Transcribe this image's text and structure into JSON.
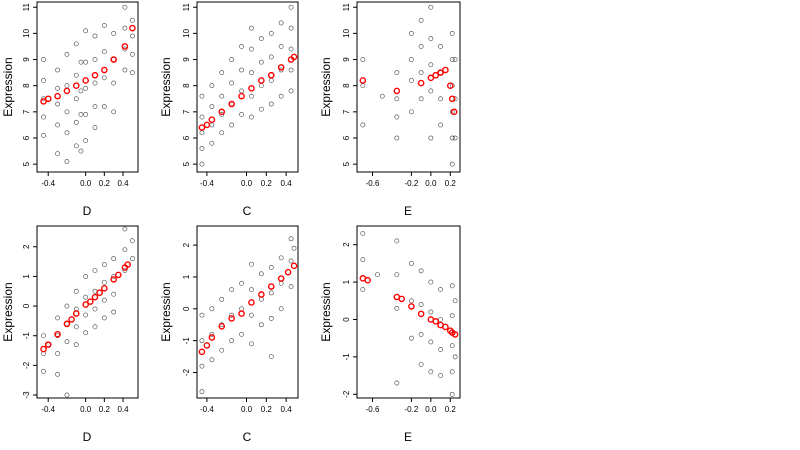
{
  "figure": {
    "background": "#ffffff"
  },
  "colors": {
    "observed": "#000000",
    "fitted": "#ff0000"
  },
  "chart_data": [
    {
      "type": "scatter",
      "panel": "top-left",
      "xlabel": "D",
      "ylabel": "Expression",
      "xlim": [
        -0.52,
        0.56
      ],
      "ylim": [
        4.7,
        11.2
      ],
      "xticks": [
        {
          "v": -0.4,
          "label": "-0.4"
        },
        {
          "v": 0.0,
          "label": "0.0"
        },
        {
          "v": 0.2,
          "label": "0.2"
        },
        {
          "v": 0.4,
          "label": "0.4"
        }
      ],
      "yticks": [
        {
          "v": 5,
          "label": "5"
        },
        {
          "v": 6,
          "label": "6"
        },
        {
          "v": 7,
          "label": "7"
        },
        {
          "v": 8,
          "label": "8"
        },
        {
          "v": 9,
          "label": "9"
        },
        {
          "v": 10,
          "label": "10"
        },
        {
          "v": 11,
          "label": "11"
        }
      ],
      "series": [
        {
          "x": [
            -0.45,
            -0.45,
            -0.45,
            -0.45,
            -0.45,
            -0.3,
            -0.3,
            -0.3,
            -0.3,
            -0.3,
            -0.2,
            -0.2,
            -0.2,
            -0.2,
            -0.2,
            -0.1,
            -0.1,
            -0.1,
            -0.1,
            -0.1,
            -0.05,
            -0.05,
            -0.05,
            -0.05,
            0.0,
            0.0,
            0.0,
            0.0,
            0.0,
            0.1,
            0.1,
            0.1,
            0.1,
            0.1,
            0.2,
            0.2,
            0.2,
            0.2,
            0.3,
            0.3,
            0.3,
            0.3,
            0.42,
            0.42,
            0.42,
            0.42,
            0.5,
            0.5,
            0.5,
            0.5
          ],
          "y": [
            9.0,
            8.2,
            7.5,
            6.8,
            6.1,
            8.6,
            7.9,
            7.3,
            6.5,
            5.4,
            9.2,
            8.0,
            7.0,
            6.2,
            5.1,
            9.6,
            8.4,
            7.5,
            6.6,
            5.7,
            8.9,
            7.8,
            6.9,
            5.5,
            10.1,
            8.9,
            7.9,
            6.9,
            5.9,
            9.9,
            9.0,
            8.1,
            7.2,
            6.4,
            10.3,
            9.3,
            8.3,
            7.2,
            10.0,
            9.0,
            8.1,
            7.0,
            11.0,
            10.2,
            9.4,
            8.6,
            10.5,
            9.9,
            9.2,
            8.5
          ]
        },
        {
          "x": [
            -0.45,
            -0.4,
            -0.3,
            -0.2,
            -0.1,
            0.0,
            0.1,
            0.2,
            0.3,
            0.42,
            0.5
          ],
          "y": [
            7.4,
            7.5,
            7.6,
            7.8,
            8.0,
            8.2,
            8.4,
            8.6,
            9.0,
            9.5,
            10.2
          ]
        }
      ]
    },
    {
      "type": "scatter",
      "panel": "top-middle",
      "xlabel": "C",
      "ylabel": "Expression",
      "xlim": [
        -0.5,
        0.52
      ],
      "ylim": [
        4.7,
        11.2
      ],
      "xticks": [
        {
          "v": -0.4,
          "label": "-0.4"
        },
        {
          "v": 0.0,
          "label": "0.0"
        },
        {
          "v": 0.2,
          "label": "0.2"
        },
        {
          "v": 0.4,
          "label": "0.4"
        }
      ],
      "yticks": [
        {
          "v": 5,
          "label": "5"
        },
        {
          "v": 6,
          "label": "6"
        },
        {
          "v": 7,
          "label": "7"
        },
        {
          "v": 8,
          "label": "8"
        },
        {
          "v": 9,
          "label": "9"
        },
        {
          "v": 10,
          "label": "10"
        },
        {
          "v": 11,
          "label": "11"
        }
      ],
      "series": [
        {
          "x": [
            -0.45,
            -0.45,
            -0.45,
            -0.45,
            -0.45,
            -0.35,
            -0.35,
            -0.35,
            -0.35,
            -0.25,
            -0.25,
            -0.25,
            -0.25,
            -0.15,
            -0.15,
            -0.15,
            -0.15,
            -0.05,
            -0.05,
            -0.05,
            -0.05,
            0.05,
            0.05,
            0.05,
            0.05,
            0.05,
            0.15,
            0.15,
            0.15,
            0.15,
            0.25,
            0.25,
            0.25,
            0.25,
            0.35,
            0.35,
            0.35,
            0.35,
            0.45,
            0.45,
            0.45,
            0.45,
            0.45
          ],
          "y": [
            7.6,
            6.8,
            6.2,
            5.6,
            5.0,
            8.0,
            7.2,
            6.5,
            5.8,
            8.5,
            7.6,
            6.9,
            6.2,
            9.0,
            8.1,
            7.3,
            6.5,
            9.5,
            8.6,
            7.8,
            6.9,
            10.2,
            9.4,
            8.5,
            7.6,
            6.8,
            9.8,
            8.9,
            8.0,
            7.1,
            10.0,
            9.1,
            8.2,
            7.3,
            10.4,
            9.5,
            8.6,
            7.6,
            11.0,
            10.2,
            9.4,
            8.6,
            7.8
          ]
        },
        {
          "x": [
            -0.45,
            -0.4,
            -0.35,
            -0.25,
            -0.15,
            -0.05,
            0.05,
            0.15,
            0.25,
            0.35,
            0.45,
            0.48
          ],
          "y": [
            6.4,
            6.5,
            6.7,
            7.0,
            7.3,
            7.6,
            7.9,
            8.2,
            8.4,
            8.7,
            9.0,
            9.1
          ]
        }
      ]
    },
    {
      "type": "scatter",
      "panel": "top-right",
      "xlabel": "E",
      "ylabel": "Expression",
      "xlim": [
        -0.76,
        0.3
      ],
      "ylim": [
        4.7,
        11.2
      ],
      "xticks": [
        {
          "v": -0.6,
          "label": "-0.6"
        },
        {
          "v": -0.2,
          "label": "-0.2"
        },
        {
          "v": 0.0,
          "label": "0.0"
        },
        {
          "v": 0.2,
          "label": "0.2"
        }
      ],
      "yticks": [
        {
          "v": 5,
          "label": "5"
        },
        {
          "v": 6,
          "label": "6"
        },
        {
          "v": 7,
          "label": "7"
        },
        {
          "v": 8,
          "label": "8"
        },
        {
          "v": 9,
          "label": "9"
        },
        {
          "v": 10,
          "label": "10"
        },
        {
          "v": 11,
          "label": "11"
        }
      ],
      "series": [
        {
          "x": [
            -0.7,
            -0.7,
            -0.7,
            -0.5,
            -0.35,
            -0.35,
            -0.35,
            -0.35,
            -0.2,
            -0.2,
            -0.2,
            -0.2,
            -0.1,
            -0.1,
            -0.1,
            -0.1,
            0.0,
            0.0,
            0.0,
            0.0,
            0.0,
            0.1,
            0.1,
            0.1,
            0.1,
            0.22,
            0.22,
            0.22,
            0.22,
            0.22,
            0.22,
            0.25,
            0.25,
            0.25
          ],
          "y": [
            9.0,
            8.0,
            6.5,
            7.6,
            8.5,
            7.5,
            6.8,
            6.0,
            10.0,
            9.0,
            8.2,
            7.0,
            10.5,
            9.5,
            8.5,
            7.5,
            11.0,
            9.8,
            8.8,
            7.8,
            6.0,
            9.5,
            8.5,
            7.5,
            6.5,
            10.0,
            9.0,
            8.0,
            7.0,
            6.0,
            5.0,
            9.0,
            7.5,
            6.0
          ]
        },
        {
          "x": [
            -0.7,
            -0.35,
            -0.1,
            0.0,
            0.05,
            0.1,
            0.15,
            0.2,
            0.22,
            0.24
          ],
          "y": [
            8.2,
            7.8,
            8.1,
            8.3,
            8.4,
            8.5,
            8.6,
            8.0,
            7.5,
            7.0
          ]
        }
      ]
    },
    {
      "type": "scatter",
      "panel": "bottom-left",
      "xlabel": "D",
      "ylabel": "Expression",
      "xlim": [
        -0.52,
        0.56
      ],
      "ylim": [
        -3.1,
        2.7
      ],
      "xticks": [
        {
          "v": -0.4,
          "label": "-0.4"
        },
        {
          "v": 0.0,
          "label": "0.0"
        },
        {
          "v": 0.2,
          "label": "0.2"
        },
        {
          "v": 0.4,
          "label": "0.4"
        }
      ],
      "yticks": [
        {
          "v": -3,
          "label": "-3"
        },
        {
          "v": -2,
          "label": "-2"
        },
        {
          "v": -1,
          "label": "-1"
        },
        {
          "v": 0,
          "label": "0"
        },
        {
          "v": 1,
          "label": "1"
        },
        {
          "v": 2,
          "label": "2"
        }
      ],
      "series": [
        {
          "x": [
            -0.45,
            -0.45,
            -0.45,
            -0.4,
            -0.3,
            -0.3,
            -0.3,
            -0.3,
            -0.2,
            -0.2,
            -0.2,
            -0.2,
            -0.1,
            -0.1,
            -0.1,
            -0.1,
            0.0,
            0.0,
            0.0,
            0.0,
            0.1,
            0.1,
            0.1,
            0.1,
            0.2,
            0.2,
            0.2,
            0.2,
            0.3,
            0.3,
            0.3,
            0.3,
            0.42,
            0.42,
            0.42,
            0.5,
            0.5
          ],
          "y": [
            -1.0,
            -1.6,
            -2.2,
            -1.3,
            -0.4,
            -1.0,
            -1.6,
            -2.3,
            0.0,
            -0.6,
            -1.2,
            -3.0,
            0.5,
            -0.1,
            -0.7,
            -1.3,
            1.0,
            0.3,
            -0.3,
            -0.9,
            1.2,
            0.5,
            -0.1,
            -0.7,
            1.4,
            0.8,
            0.2,
            -0.4,
            1.6,
            1.0,
            0.4,
            -0.2,
            2.6,
            1.9,
            1.2,
            2.2,
            1.6
          ]
        },
        {
          "x": [
            -0.45,
            -0.4,
            -0.3,
            -0.2,
            -0.15,
            -0.1,
            0.0,
            0.05,
            0.1,
            0.15,
            0.2,
            0.3,
            0.35,
            0.42,
            0.45
          ],
          "y": [
            -1.45,
            -1.3,
            -0.95,
            -0.6,
            -0.45,
            -0.25,
            0.05,
            0.15,
            0.3,
            0.45,
            0.6,
            0.9,
            1.05,
            1.3,
            1.4
          ]
        }
      ]
    },
    {
      "type": "scatter",
      "panel": "bottom-middle",
      "xlabel": "C",
      "ylabel": "Expression",
      "xlim": [
        -0.5,
        0.52
      ],
      "ylim": [
        -2.8,
        2.6
      ],
      "xticks": [
        {
          "v": -0.4,
          "label": "-0.4"
        },
        {
          "v": 0.0,
          "label": "0.0"
        },
        {
          "v": 0.2,
          "label": "0.2"
        },
        {
          "v": 0.4,
          "label": "0.4"
        }
      ],
      "yticks": [
        {
          "v": -2,
          "label": "-2"
        },
        {
          "v": -1,
          "label": "-1"
        },
        {
          "v": 0,
          "label": "0"
        },
        {
          "v": 1,
          "label": "1"
        },
        {
          "v": 2,
          "label": "2"
        }
      ],
      "series": [
        {
          "x": [
            -0.45,
            -0.45,
            -0.45,
            -0.45,
            -0.35,
            -0.35,
            -0.35,
            -0.25,
            -0.25,
            -0.25,
            -0.15,
            -0.15,
            -0.15,
            -0.05,
            -0.05,
            -0.05,
            0.05,
            0.05,
            0.05,
            0.05,
            0.15,
            0.15,
            0.15,
            0.25,
            0.25,
            0.25,
            0.25,
            0.35,
            0.35,
            0.35,
            0.45,
            0.45,
            0.45,
            0.48
          ],
          "y": [
            -0.2,
            -1.0,
            -1.8,
            -2.6,
            0.0,
            -0.8,
            -1.6,
            0.3,
            -0.5,
            -1.3,
            0.6,
            -0.2,
            -1.0,
            0.8,
            0.0,
            -0.8,
            1.4,
            0.6,
            -0.2,
            -1.1,
            1.1,
            0.3,
            -0.5,
            1.3,
            0.5,
            -0.3,
            -1.5,
            1.6,
            0.8,
            0.0,
            2.2,
            1.5,
            0.7,
            1.9
          ]
        },
        {
          "x": [
            -0.45,
            -0.4,
            -0.35,
            -0.25,
            -0.15,
            -0.05,
            0.05,
            0.15,
            0.25,
            0.35,
            0.42,
            0.48
          ],
          "y": [
            -1.35,
            -1.15,
            -0.9,
            -0.55,
            -0.3,
            -0.15,
            0.2,
            0.45,
            0.7,
            0.95,
            1.15,
            1.35
          ]
        }
      ]
    },
    {
      "type": "scatter",
      "panel": "bottom-right",
      "xlabel": "E",
      "ylabel": "Expression",
      "xlim": [
        -0.76,
        0.3
      ],
      "ylim": [
        -2.1,
        2.5
      ],
      "xticks": [
        {
          "v": -0.6,
          "label": "-0.6"
        },
        {
          "v": -0.2,
          "label": "-0.2"
        },
        {
          "v": 0.0,
          "label": "0.0"
        },
        {
          "v": 0.2,
          "label": "0.2"
        }
      ],
      "yticks": [
        {
          "v": -2,
          "label": "-2"
        },
        {
          "v": -1,
          "label": "-1"
        },
        {
          "v": 0,
          "label": "0"
        },
        {
          "v": 1,
          "label": "1"
        },
        {
          "v": 2,
          "label": "2"
        }
      ],
      "series": [
        {
          "x": [
            -0.7,
            -0.7,
            -0.7,
            -0.55,
            -0.35,
            -0.35,
            -0.35,
            -0.35,
            -0.2,
            -0.2,
            -0.2,
            -0.1,
            -0.1,
            -0.1,
            -0.1,
            0.0,
            0.0,
            0.0,
            0.0,
            0.1,
            0.1,
            0.1,
            0.1,
            0.22,
            0.22,
            0.22,
            0.22,
            0.22,
            0.25,
            0.25
          ],
          "y": [
            2.3,
            1.6,
            0.8,
            1.2,
            2.1,
            1.2,
            0.3,
            -1.7,
            1.5,
            0.5,
            -0.5,
            1.3,
            0.4,
            -0.4,
            -1.2,
            1.0,
            0.2,
            -0.6,
            -1.4,
            0.8,
            0.0,
            -0.8,
            -1.5,
            0.9,
            0.1,
            -0.7,
            -1.4,
            -2.0,
            0.5,
            -1.0
          ]
        },
        {
          "x": [
            -0.7,
            -0.65,
            -0.35,
            -0.3,
            -0.2,
            -0.1,
            0.0,
            0.05,
            0.1,
            0.15,
            0.2,
            0.22,
            0.25
          ],
          "y": [
            1.1,
            1.05,
            0.6,
            0.55,
            0.35,
            0.15,
            0.0,
            -0.05,
            -0.15,
            -0.2,
            -0.3,
            -0.35,
            -0.4
          ]
        }
      ]
    }
  ]
}
